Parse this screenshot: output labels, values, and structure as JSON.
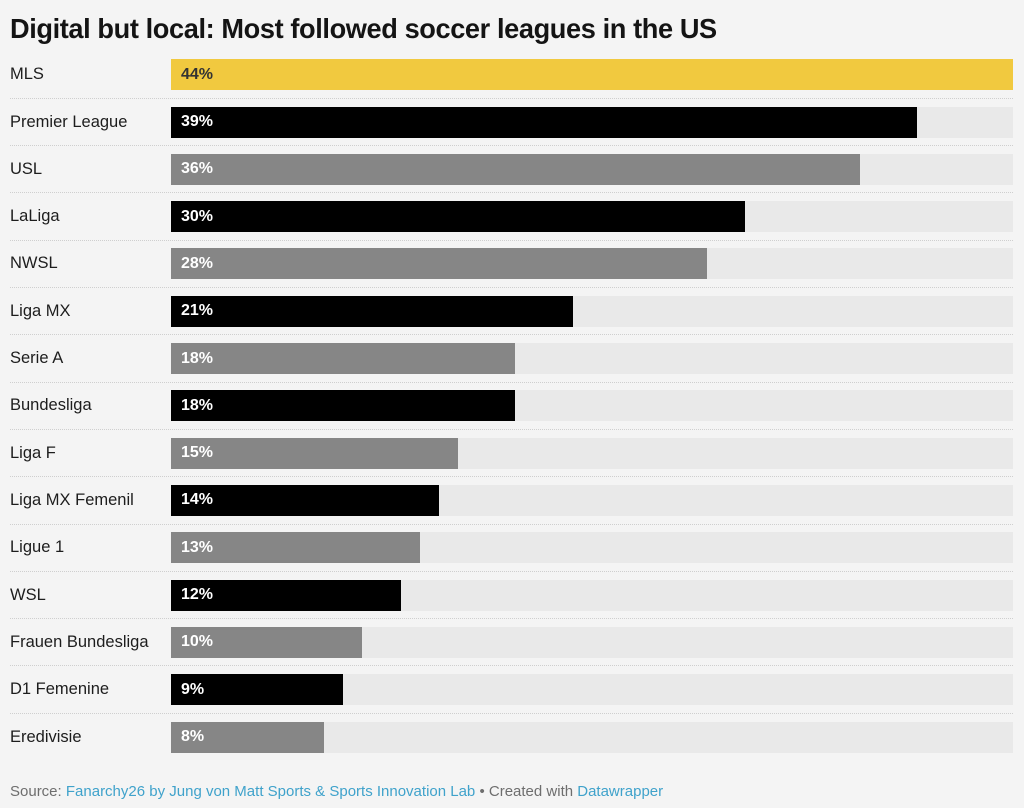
{
  "title": "Digital but local: Most followed soccer leagues in the US",
  "footer": {
    "source_label": "Source: ",
    "source_link": "Fanarchy26 by Jung von Matt Sports & Sports Innovation Lab",
    "separator": " • ",
    "created_with": "Created with ",
    "tool_link": "Datawrapper",
    "link_color": "#3fa2cb",
    "text_color": "#6e6e6e"
  },
  "chart_data": {
    "type": "bar",
    "orientation": "horizontal",
    "title": "Digital but local: Most followed soccer leagues in the US",
    "xlabel": "",
    "ylabel": "",
    "xlim": [
      0,
      44
    ],
    "value_unit": "%",
    "grid": false,
    "legend": false,
    "track_color": "#e9e9e9",
    "background_color": "#f4f4f4",
    "categories": [
      "MLS",
      "Premier League",
      "USL",
      "LaLiga",
      "NWSL",
      "Liga MX",
      "Serie A",
      "Bundesliga",
      "Liga F",
      "Liga MX Femenil",
      "Ligue 1",
      "WSL",
      "Frauen Bundesliga",
      "D1 Femenine",
      "Eredivisie"
    ],
    "values": [
      44,
      39,
      36,
      30,
      28,
      21,
      18,
      18,
      15,
      14,
      13,
      12,
      10,
      9,
      8
    ],
    "bars": [
      {
        "label": "MLS",
        "value": 44,
        "value_label": "44%",
        "color": "#f1c93f",
        "text_color": "#333333"
      },
      {
        "label": "Premier League",
        "value": 39,
        "value_label": "39%",
        "color": "#000000",
        "text_color": "#ffffff"
      },
      {
        "label": "USL",
        "value": 36,
        "value_label": "36%",
        "color": "#868686",
        "text_color": "#ffffff"
      },
      {
        "label": "LaLiga",
        "value": 30,
        "value_label": "30%",
        "color": "#000000",
        "text_color": "#ffffff"
      },
      {
        "label": "NWSL",
        "value": 28,
        "value_label": "28%",
        "color": "#868686",
        "text_color": "#ffffff"
      },
      {
        "label": "Liga MX",
        "value": 21,
        "value_label": "21%",
        "color": "#000000",
        "text_color": "#ffffff"
      },
      {
        "label": "Serie A",
        "value": 18,
        "value_label": "18%",
        "color": "#868686",
        "text_color": "#ffffff"
      },
      {
        "label": "Bundesliga",
        "value": 18,
        "value_label": "18%",
        "color": "#000000",
        "text_color": "#ffffff"
      },
      {
        "label": "Liga F",
        "value": 15,
        "value_label": "15%",
        "color": "#868686",
        "text_color": "#ffffff"
      },
      {
        "label": "Liga MX Femenil",
        "value": 14,
        "value_label": "14%",
        "color": "#000000",
        "text_color": "#ffffff"
      },
      {
        "label": "Ligue 1",
        "value": 13,
        "value_label": "13%",
        "color": "#868686",
        "text_color": "#ffffff"
      },
      {
        "label": "WSL",
        "value": 12,
        "value_label": "12%",
        "color": "#000000",
        "text_color": "#ffffff"
      },
      {
        "label": "Frauen Bundesliga",
        "value": 10,
        "value_label": "10%",
        "color": "#868686",
        "text_color": "#ffffff"
      },
      {
        "label": "D1 Femenine",
        "value": 9,
        "value_label": "9%",
        "color": "#000000",
        "text_color": "#ffffff"
      },
      {
        "label": "Eredivisie",
        "value": 8,
        "value_label": "8%",
        "color": "#868686",
        "text_color": "#ffffff"
      }
    ]
  }
}
